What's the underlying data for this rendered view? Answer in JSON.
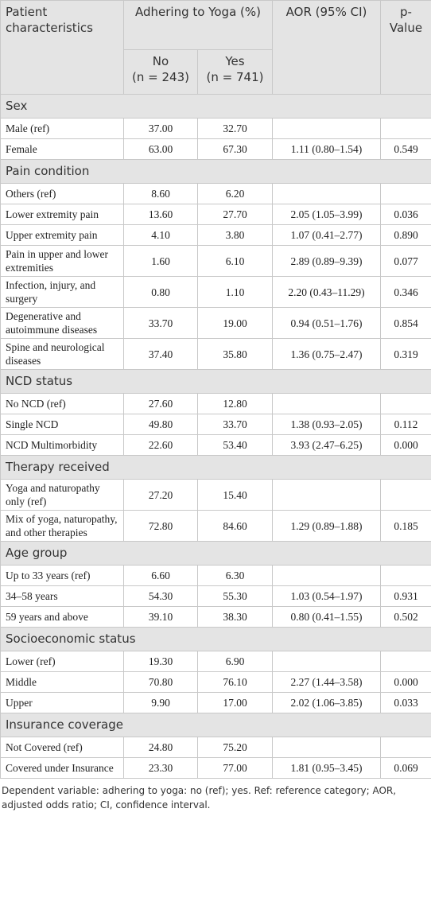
{
  "header": {
    "characteristics": "Patient characteristics",
    "adhering": "Adhering to Yoga (%)",
    "no": {
      "label": "No",
      "n": "(n = 243)"
    },
    "yes": {
      "label": "Yes",
      "n": "(n = 741)"
    },
    "aor": "AOR (95% CI)",
    "p": "p-Value"
  },
  "sections": [
    {
      "title": "Sex",
      "rows": [
        {
          "label": "Male (ref)",
          "no": "37.00",
          "yes": "32.70"
        },
        {
          "label": "Female",
          "no": "63.00",
          "yes": "67.30",
          "aor": "1.11 (0.80–1.54)",
          "p": "0.549"
        }
      ]
    },
    {
      "title": "Pain condition",
      "rows": [
        {
          "label": "Others (ref)",
          "no": "8.60",
          "yes": "6.20"
        },
        {
          "label": "Lower extremity pain",
          "no": "13.60",
          "yes": "27.70",
          "aor": "2.05 (1.05–3.99)",
          "p": "0.036"
        },
        {
          "label": "Upper extremity pain",
          "no": "4.10",
          "yes": "3.80",
          "aor": "1.07 (0.41–2.77)",
          "p": "0.890"
        },
        {
          "label": "Pain in upper and lower extremities",
          "no": "1.60",
          "yes": "6.10",
          "aor": "2.89 (0.89–9.39)",
          "p": "0.077"
        },
        {
          "label": "Infection, injury, and surgery",
          "no": "0.80",
          "yes": "1.10",
          "aor": "2.20 (0.43–11.29)",
          "p": "0.346"
        },
        {
          "label": "Degenerative and autoimmune diseases",
          "no": "33.70",
          "yes": "19.00",
          "aor": "0.94 (0.51–1.76)",
          "p": "0.854"
        },
        {
          "label": "Spine and neurological diseases",
          "no": "37.40",
          "yes": "35.80",
          "aor": "1.36 (0.75–2.47)",
          "p": "0.319"
        }
      ]
    },
    {
      "title": "NCD status",
      "rows": [
        {
          "label": "No NCD (ref)",
          "no": "27.60",
          "yes": "12.80"
        },
        {
          "label": "Single NCD",
          "no": "49.80",
          "yes": "33.70",
          "aor": "1.38 (0.93–2.05)",
          "p": "0.112"
        },
        {
          "label": "NCD Multimorbidity",
          "no": "22.60",
          "yes": "53.40",
          "aor": "3.93 (2.47–6.25)",
          "p": "0.000"
        }
      ]
    },
    {
      "title": "Therapy received",
      "rows": [
        {
          "label": "Yoga and naturopathy only (ref)",
          "no": "27.20",
          "yes": "15.40"
        },
        {
          "label": "Mix of yoga, naturopathy, and other therapies",
          "no": "72.80",
          "yes": "84.60",
          "aor": "1.29 (0.89–1.88)",
          "p": "0.185"
        }
      ]
    },
    {
      "title": "Age group",
      "rows": [
        {
          "label": "Up to 33 years (ref)",
          "no": "6.60",
          "yes": "6.30"
        },
        {
          "label": "34–58 years",
          "no": "54.30",
          "yes": "55.30",
          "aor": "1.03 (0.54–1.97)",
          "p": "0.931"
        },
        {
          "label": "59 years and above",
          "no": "39.10",
          "yes": "38.30",
          "aor": "0.80 (0.41–1.55)",
          "p": "0.502"
        }
      ]
    },
    {
      "title": "Socioeconomic status",
      "rows": [
        {
          "label": "Lower (ref)",
          "no": "19.30",
          "yes": "6.90"
        },
        {
          "label": "Middle",
          "no": "70.80",
          "yes": "76.10",
          "aor": "2.27 (1.44–3.58)",
          "p": "0.000"
        },
        {
          "label": "Upper",
          "no": "9.90",
          "yes": "17.00",
          "aor": "2.02 (1.06–3.85)",
          "p": "0.033"
        }
      ]
    },
    {
      "title": "Insurance coverage",
      "rows": [
        {
          "label": "Not Covered (ref)",
          "no": "24.80",
          "yes": "75.20"
        },
        {
          "label": "Covered under Insurance",
          "no": "23.30",
          "yes": "77.00",
          "aor": "1.81 (0.95–3.45)",
          "p": "0.069"
        }
      ]
    }
  ],
  "footnote": "Dependent variable: adhering to yoga: no (ref); yes. Ref: reference category; AOR, adjusted odds ratio; CI, confidence interval."
}
